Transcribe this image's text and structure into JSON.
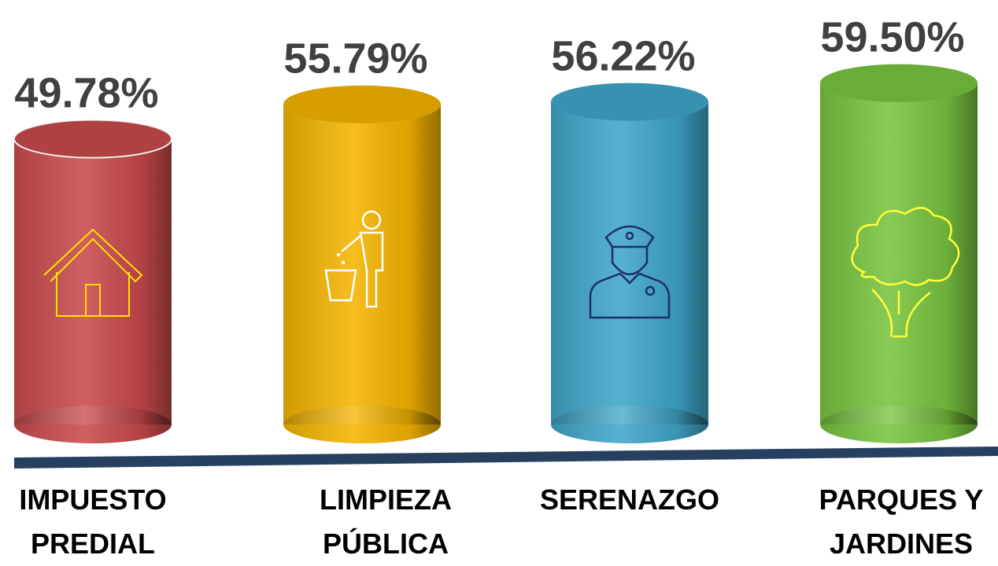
{
  "chart_data": {
    "type": "bar",
    "categories": [
      "IMPUESTO PREDIAL",
      "LIMPIEZA PÚBLICA",
      "SERENAZGO",
      "PARQUES Y JARDINES"
    ],
    "values": [
      49.78,
      55.79,
      56.22,
      59.5
    ],
    "value_labels": [
      "49.78%",
      "55.79%",
      "56.22%",
      "59.50%"
    ],
    "colors": [
      "#c94a4c",
      "#f4b400",
      "#3fa6c9",
      "#78c43f"
    ]
  }
}
